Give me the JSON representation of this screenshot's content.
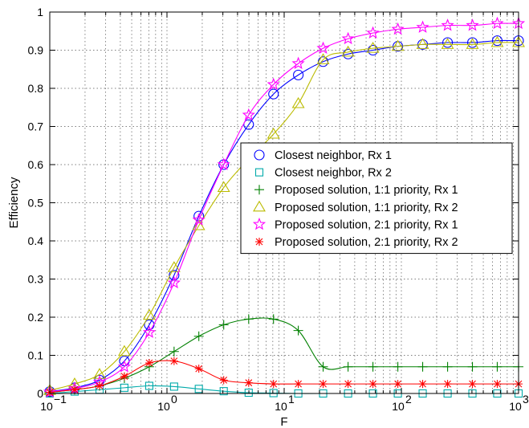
{
  "chart_data": {
    "type": "line",
    "title": "",
    "xlabel": "F",
    "ylabel": "Efficiency",
    "xscale": "log",
    "xlim": [
      0.1,
      1000
    ],
    "ylim": [
      0,
      1
    ],
    "grid": true,
    "legend_position": "center-right",
    "x_tick_labels": [
      "10",
      "10",
      "10",
      "10",
      "10"
    ],
    "x_tick_exponents": [
      "−1",
      "0",
      "1",
      "2",
      "3"
    ],
    "y_tick_labels": [
      "0",
      "0.1",
      "0.2",
      "0.3",
      "0.4",
      "0.5",
      "0.6",
      "0.7",
      "0.8",
      "0.9",
      "1"
    ],
    "x": [
      0.1,
      0.163,
      0.266,
      0.433,
      0.706,
      1.15,
      1.87,
      3.05,
      4.98,
      8.11,
      13.2,
      21.5,
      35.1,
      57.2,
      93.3,
      152,
      248,
      404,
      658,
      1000
    ],
    "series": [
      {
        "name": "Closest neighbor, Rx 1",
        "color": "#0000ff",
        "marker": "circle",
        "values": [
          0.005,
          0.015,
          0.035,
          0.085,
          0.18,
          0.31,
          0.465,
          0.6,
          0.705,
          0.785,
          0.835,
          0.87,
          0.89,
          0.9,
          0.91,
          0.915,
          0.92,
          0.92,
          0.925,
          0.925
        ]
      },
      {
        "name": "Closest neighbor, Rx 2",
        "color": "#00aaaa",
        "marker": "square",
        "values": [
          0.0,
          0.005,
          0.01,
          0.015,
          0.02,
          0.018,
          0.012,
          0.006,
          0.002,
          0.001,
          0.0,
          0.0,
          0.0,
          0.0,
          0.0,
          0.0,
          0.0,
          0.0,
          0.0,
          0.0
        ]
      },
      {
        "name": "Proposed solution, 1:1 priority, Rx 1",
        "color": "#008000",
        "marker": "plus",
        "values": [
          0.003,
          0.01,
          0.02,
          0.04,
          0.07,
          0.11,
          0.15,
          0.18,
          0.195,
          0.195,
          0.165,
          0.07,
          0.07,
          0.07,
          0.07,
          0.07,
          0.07,
          0.07,
          0.07,
          0.07
        ]
      },
      {
        "name": "Proposed solution, 1:1 priority, Rx 2",
        "color": "#bbbb00",
        "marker": "triangle",
        "values": [
          0.008,
          0.025,
          0.05,
          0.11,
          0.205,
          0.33,
          0.44,
          0.54,
          0.615,
          0.68,
          0.76,
          0.875,
          0.895,
          0.905,
          0.91,
          0.915,
          0.915,
          0.915,
          0.92,
          0.92
        ]
      },
      {
        "name": "Proposed solution, 2:1 priority, Rx 1",
        "color": "#ff00ff",
        "marker": "star",
        "values": [
          0.004,
          0.013,
          0.03,
          0.07,
          0.16,
          0.29,
          0.455,
          0.6,
          0.73,
          0.81,
          0.865,
          0.905,
          0.93,
          0.945,
          0.955,
          0.96,
          0.965,
          0.965,
          0.97,
          0.97
        ]
      },
      {
        "name": "Proposed solution, 2:1 priority, Rx 2",
        "color": "#ff0000",
        "marker": "asterisk",
        "values": [
          0.003,
          0.01,
          0.02,
          0.045,
          0.08,
          0.085,
          0.065,
          0.035,
          0.028,
          0.025,
          0.025,
          0.025,
          0.025,
          0.025,
          0.025,
          0.025,
          0.025,
          0.025,
          0.025,
          0.025
        ]
      }
    ]
  }
}
